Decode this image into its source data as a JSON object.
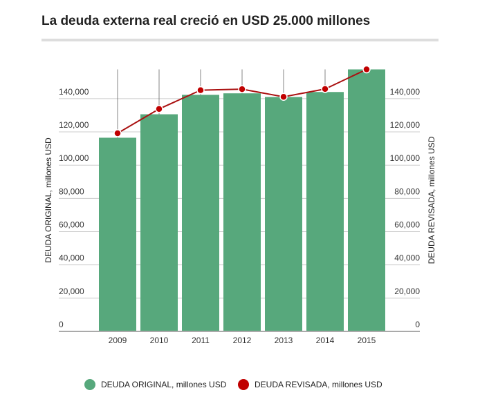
{
  "chart_data": {
    "type": "bar+line",
    "title": "La deuda externa real creció en USD 25.000 millones",
    "categories": [
      "2009",
      "2010",
      "2011",
      "2012",
      "2013",
      "2014",
      "2015"
    ],
    "series": [
      {
        "name": "DEUDA ORIGINAL, millones USD",
        "type": "bar",
        "axis": "left",
        "color": "#57a87c",
        "values": [
          116500,
          130600,
          142300,
          143200,
          141000,
          144000,
          157600
        ]
      },
      {
        "name": "DEUDA REVISADA, millones USD",
        "type": "line",
        "axis": "right",
        "color": "#c00000",
        "values": [
          119200,
          133800,
          145100,
          145700,
          141100,
          145800,
          157600
        ]
      }
    ],
    "ylabel_left": "DEUDA ORIGINAL, millones USD",
    "ylabel_right": "DEUDA REVISADA, millones USD",
    "yticks": [
      0,
      20000,
      40000,
      60000,
      80000,
      100000,
      120000,
      140000
    ],
    "ytick_labels": [
      "0",
      "20,000",
      "40,000",
      "60,000",
      "80,000",
      "100,000",
      "120,000",
      "140,000"
    ],
    "ylim": [
      0,
      157600
    ],
    "grid": true,
    "legend_position": "bottom"
  }
}
